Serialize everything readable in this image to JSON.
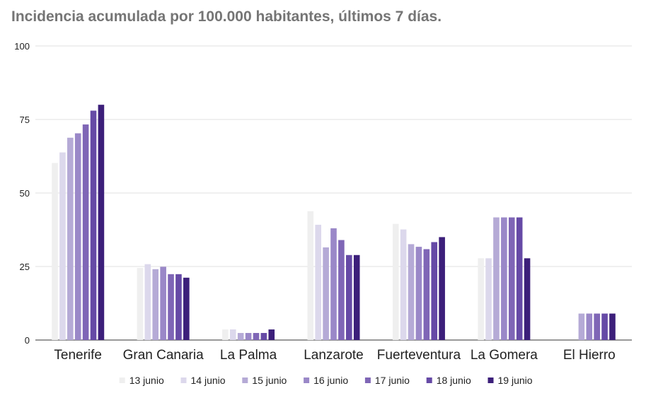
{
  "chart_data": {
    "type": "bar",
    "title": "Incidencia acumulada por 100.000 habitantes, últimos 7 días.",
    "xlabel": "",
    "ylabel": "",
    "ylim": [
      0,
      100
    ],
    "yticks": [
      "0",
      "25",
      "50",
      "75",
      "100"
    ],
    "grid": true,
    "legend_position": "bottom",
    "categories": [
      "Tenerife",
      "Gran Canaria",
      "La Palma",
      "Lanzarote",
      "Fuerteventura",
      "La Gomera",
      "El Hierro"
    ],
    "series": [
      {
        "name": "13 junio",
        "color": "#efefef",
        "values": [
          60.2,
          24.5,
          3.6,
          43.8,
          39.5,
          27.8,
          0
        ]
      },
      {
        "name": "14 junio",
        "color": "#dcd8ec",
        "values": [
          63.8,
          25.8,
          3.6,
          39.2,
          37.6,
          27.8,
          0
        ]
      },
      {
        "name": "15 junio",
        "color": "#b5aad6",
        "values": [
          68.8,
          24.1,
          2.4,
          31.5,
          32.6,
          41.7,
          9.0
        ]
      },
      {
        "name": "16 junio",
        "color": "#9a88c8",
        "values": [
          70.3,
          24.9,
          2.4,
          38.0,
          31.7,
          41.7,
          9.0
        ]
      },
      {
        "name": "17 junio",
        "color": "#7f66b6",
        "values": [
          73.3,
          22.4,
          2.4,
          34.0,
          30.9,
          41.7,
          9.0
        ]
      },
      {
        "name": "18 junio",
        "color": "#664aa6",
        "values": [
          78.0,
          22.4,
          2.4,
          28.9,
          33.3,
          41.7,
          9.0
        ]
      },
      {
        "name": "19 junio",
        "color": "#3c1f7a",
        "values": [
          80.0,
          21.2,
          3.6,
          28.9,
          35.0,
          27.8,
          9.0
        ]
      }
    ]
  }
}
